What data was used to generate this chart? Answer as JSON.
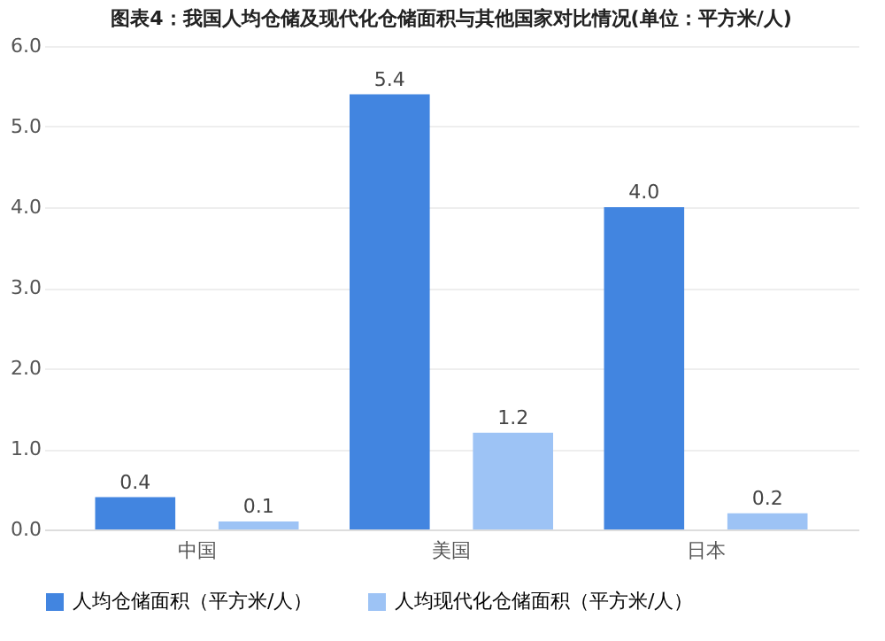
{
  "chart_data": {
    "type": "bar",
    "title": "图表4：我国人均仓储及现代化仓储面积与其他国家对比情况(单位：平方米/人)",
    "categories": [
      "中国",
      "美国",
      "日本"
    ],
    "series": [
      {
        "name": "人均仓储面积（平方米/人）",
        "color": "#4285e0",
        "values": [
          0.4,
          5.4,
          4.0
        ],
        "value_labels": [
          "0.4",
          "5.4",
          "4.0"
        ]
      },
      {
        "name": "人均现代化仓储面积（平方米/人）",
        "color": "#9dc3f5",
        "values": [
          0.1,
          1.2,
          0.2
        ],
        "value_labels": [
          "0.1",
          "1.2",
          "0.2"
        ]
      }
    ],
    "ylim": [
      0,
      6
    ],
    "yticks": [
      {
        "value": 0,
        "label": "0.0"
      },
      {
        "value": 1,
        "label": "1.0"
      },
      {
        "value": 2,
        "label": "2.0"
      },
      {
        "value": 3,
        "label": "3.0"
      },
      {
        "value": 4,
        "label": "4.0"
      },
      {
        "value": 5,
        "label": "5.0"
      },
      {
        "value": 6,
        "label": "6.0"
      }
    ],
    "grid": "y",
    "legend": "bottom"
  }
}
